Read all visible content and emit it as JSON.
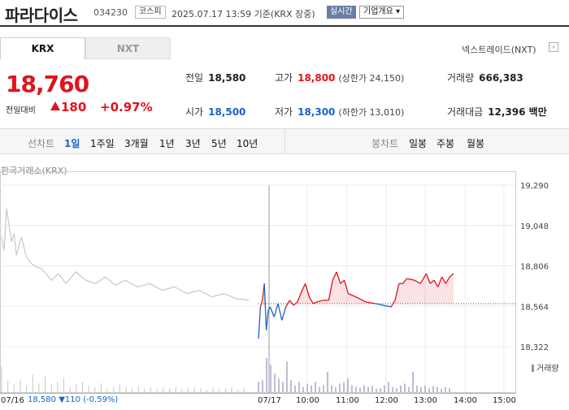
{
  "header": {
    "name": "파라다이스",
    "code": "034230",
    "market_badge": "코스피",
    "datetime": "2025.07.17 13:59 기준(KRX 장중)",
    "live_badge": "실시간",
    "overview_button": "기업개요",
    "overview_arrow": "▾"
  },
  "tabs": [
    {
      "label": "KRX",
      "active": true
    },
    {
      "label": "NXT",
      "active": false
    }
  ],
  "nxt_link": "넥스트레이드(NXT)",
  "nxt_arrow": "›",
  "quote": {
    "price": "18,760",
    "change_label": "전일대비",
    "change": "180",
    "change_pct": "+0.97%",
    "direction_icon": "up-triangle-icon"
  },
  "stats": {
    "prev_label": "전일",
    "prev": "18,580",
    "high_label": "고가",
    "high": "18,800",
    "upper_limit": "(상한가 24,150)",
    "volume_label": "거래량",
    "volume": "666,383",
    "open_label": "시가",
    "open": "18,500",
    "low_label": "저가",
    "low": "18,300",
    "lower_limit": "(하한가 13,010)",
    "amount_label": "거래대금",
    "amount": "12,396 백만"
  },
  "period_bar": {
    "line_chart_label": "선차트",
    "periods": [
      "1일",
      "1주일",
      "3개월",
      "1년",
      "3년",
      "5년",
      "10년"
    ],
    "selected": "1일",
    "candle_label": "봉차트",
    "candles": [
      "일봉",
      "주봉",
      "월봉"
    ]
  },
  "chart_source": "한국거래소(KRX)",
  "volume_legend": "거래량",
  "prev_day": {
    "date": "07/16",
    "close": "18,580",
    "change": "▼110",
    "change_pct": "(-0.59%)"
  },
  "colors": {
    "up": "#e0141e",
    "down": "#1a63c6",
    "prev_line": "#c8c8c8",
    "volume": "#9b8bbf"
  },
  "chart_data": {
    "type": "line",
    "ylim": [
      18322,
      19290
    ],
    "yticks": [
      "19,290",
      "19,048",
      "18,806",
      "18,564",
      "18,322"
    ],
    "xticks": [
      "07/16",
      "07/17",
      "10:00",
      "11:00",
      "12:00",
      "13:00",
      "14:00",
      "15:00"
    ],
    "baseline": 18580,
    "series": [
      {
        "day": "07/16",
        "x": [
          0,
          0.01,
          0.02,
          0.04,
          0.05,
          0.06,
          0.08,
          0.1,
          0.12,
          0.14,
          0.16,
          0.18,
          0.2,
          0.23,
          0.26,
          0.3,
          0.34,
          0.38,
          0.42,
          0.46,
          0.5,
          0.55,
          0.6,
          0.65,
          0.7,
          0.75,
          0.8,
          0.85,
          0.9,
          0.95,
          1.0
        ],
        "y": [
          18980,
          18900,
          19150,
          18950,
          19000,
          18870,
          18980,
          18860,
          18820,
          18800,
          18790,
          18760,
          18720,
          18760,
          18700,
          18770,
          18720,
          18700,
          18740,
          18690,
          18720,
          18680,
          18700,
          18660,
          18680,
          18640,
          18660,
          18620,
          18640,
          18610,
          18600
        ]
      },
      {
        "day": "07/17",
        "x": [
          0,
          0.01,
          0.02,
          0.03,
          0.04,
          0.05,
          0.06,
          0.08,
          0.1,
          0.12,
          0.14,
          0.16,
          0.18,
          0.2,
          0.22,
          0.24,
          0.26,
          0.28,
          0.3,
          0.33,
          0.36,
          0.38,
          0.4,
          0.42,
          0.44,
          0.46,
          0.5,
          0.55,
          0.6,
          0.64,
          0.68,
          0.7,
          0.72,
          0.74,
          0.76,
          0.8,
          0.83,
          0.86,
          0.88,
          0.9,
          0.92,
          0.94,
          0.96,
          0.98,
          1.0
        ],
        "y": [
          18370,
          18560,
          18600,
          18700,
          18420,
          18540,
          18560,
          18500,
          18580,
          18480,
          18560,
          18600,
          18570,
          18590,
          18650,
          18700,
          18620,
          18580,
          18590,
          18600,
          18600,
          18720,
          18770,
          18700,
          18720,
          18640,
          18620,
          18590,
          18580,
          18570,
          18560,
          18600,
          18700,
          18700,
          18730,
          18720,
          18700,
          18760,
          18700,
          18720,
          18680,
          18740,
          18700,
          18740,
          18760
        ]
      }
    ],
    "volume_prev": [
      1.0,
      0.45,
      0.3,
      0.5,
      0.25,
      0.7,
      0.35,
      0.6,
      0.3,
      0.4,
      0.55,
      0.2,
      0.3,
      0.4,
      0.25,
      0.2,
      0.35,
      0.15,
      0.2,
      0.3,
      0.2,
      0.15,
      0.25,
      0.15,
      0.2,
      0.12,
      0.18,
      0.15,
      0.2,
      0.12,
      0.15,
      0.2,
      0.15,
      0.1,
      0.18,
      0.12,
      0.15,
      0.2,
      0.1,
      0.15
    ],
    "volume_today": [
      0.3,
      0.35,
      1.0,
      0.8,
      0.55,
      0.4,
      0.3,
      0.9,
      0.35,
      0.2,
      0.3,
      0.15,
      0.25,
      0.2,
      0.3,
      0.15,
      0.2,
      0.6,
      0.2,
      0.15,
      0.25,
      0.3,
      0.4,
      0.2,
      0.15,
      0.12,
      0.2,
      0.15,
      0.18,
      0.1,
      0.12,
      0.2,
      0.3,
      0.15,
      0.12,
      0.2,
      0.25,
      0.15,
      0.6,
      0.2,
      0.15,
      0.2,
      0.12,
      0.18,
      0.15,
      0.1,
      0.15,
      0.12
    ]
  }
}
